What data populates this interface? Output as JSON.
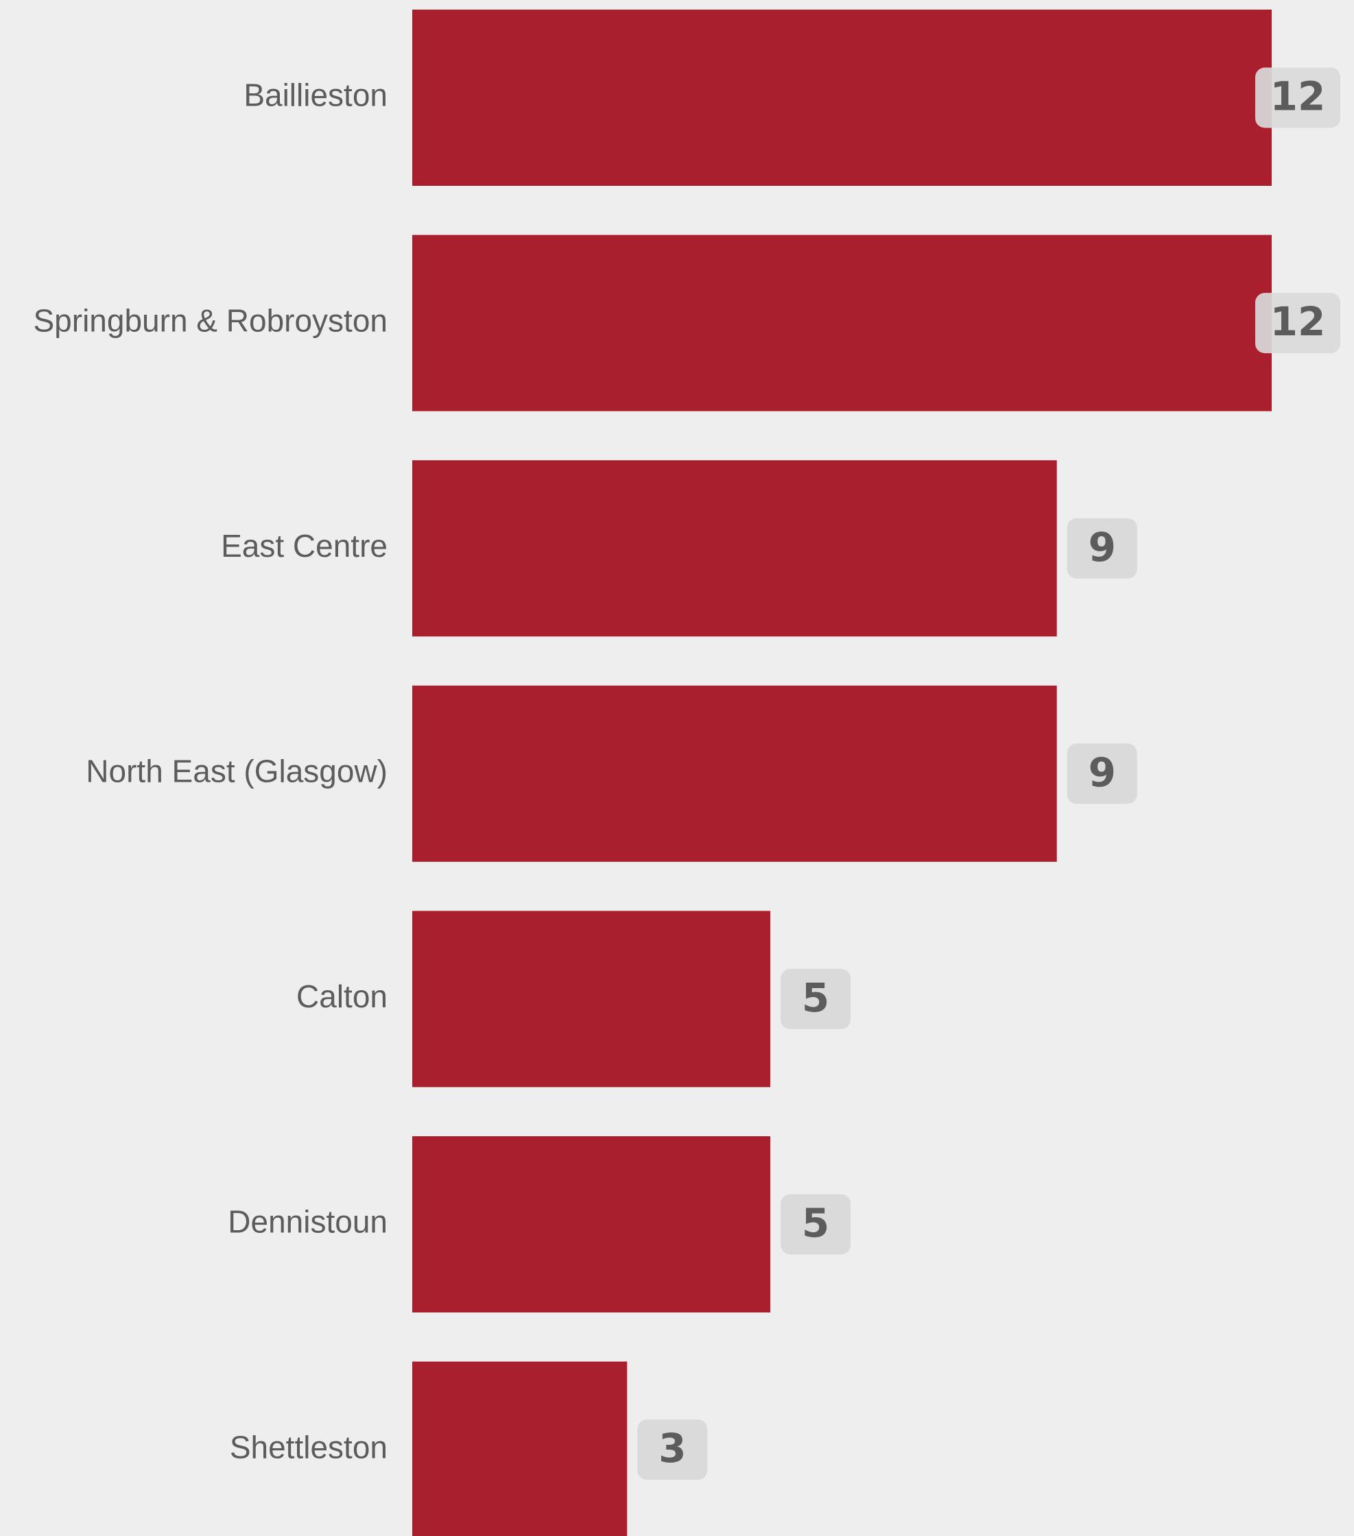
{
  "chart_data": {
    "type": "bar",
    "orientation": "horizontal",
    "categories": [
      "Baillieston",
      "Springburn & Robroyston",
      "East Centre",
      "North East (Glasgow)",
      "Calton",
      "Dennistoun",
      "Shettleston"
    ],
    "values": [
      12,
      12,
      9,
      9,
      5,
      5,
      3
    ],
    "value_labels": [
      "12",
      "12",
      "9",
      "9",
      "5",
      "5",
      "3"
    ],
    "xlim": [
      0,
      12
    ],
    "grid": false,
    "legend": "none",
    "colors": {
      "bar": "#aa1f2e",
      "background": "#eeeeef",
      "label_text": "#5c5c5c",
      "badge_fill": "#dadada"
    }
  }
}
